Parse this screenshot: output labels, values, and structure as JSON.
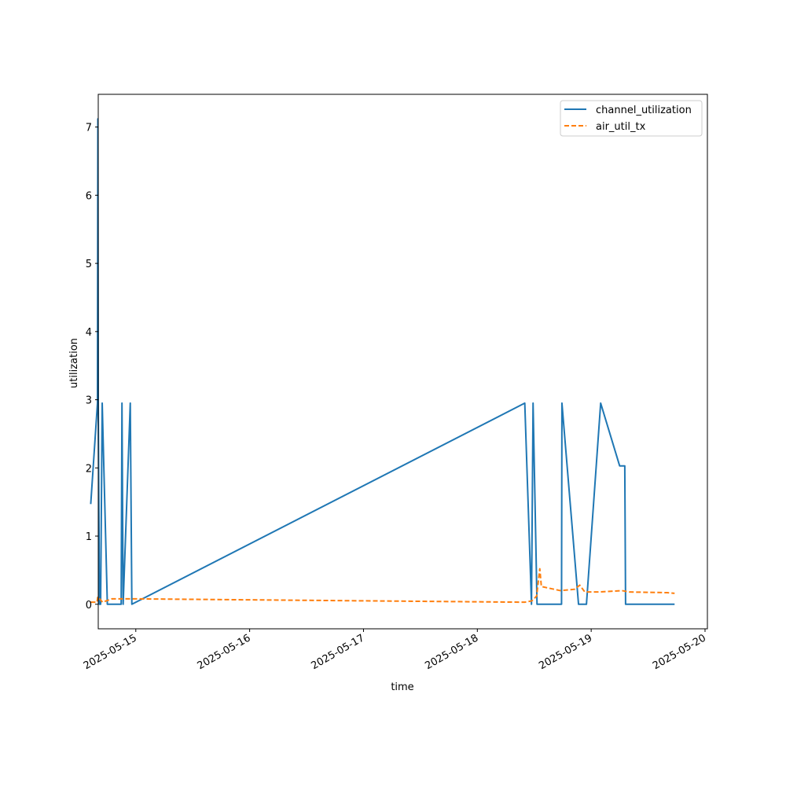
{
  "chart_data": {
    "type": "line",
    "title": "",
    "xlabel": "time",
    "ylabel": "utilization",
    "x_ticks": [
      "2025-05-15",
      "2025-05-16",
      "2025-05-17",
      "2025-05-18",
      "2025-05-19",
      "2025-05-20"
    ],
    "y_ticks": [
      "0",
      "1",
      "2",
      "3",
      "4",
      "5",
      "6",
      "7"
    ],
    "xlim": [
      "2025-05-14 16:05",
      "2025-05-20 00:30"
    ],
    "ylim": [
      -0.36,
      7.48
    ],
    "grid": false,
    "legend_position": "top-right",
    "series": [
      {
        "name": "channel_utilization",
        "color": "#1f77b4",
        "style": "solid",
        "points": [
          [
            "2025-05-14 14:30",
            1.47
          ],
          [
            "2025-05-14 15:55",
            2.95
          ],
          [
            "2025-05-14 16:00",
            7.12
          ],
          [
            "2025-05-14 16:05",
            2.95
          ],
          [
            "2025-05-14 16:20",
            0.0
          ],
          [
            "2025-05-14 16:35",
            0.0
          ],
          [
            "2025-05-14 16:55",
            2.95
          ],
          [
            "2025-05-14 18:00",
            0.0
          ],
          [
            "2025-05-14 20:55",
            0.0
          ],
          [
            "2025-05-14 21:05",
            2.95
          ],
          [
            "2025-05-14 21:20",
            0.0
          ],
          [
            "2025-05-14 22:50",
            2.95
          ],
          [
            "2025-05-14 23:10",
            0.0
          ],
          [
            "2025-05-18 10:00",
            2.95
          ],
          [
            "2025-05-18 11:25",
            0.0
          ],
          [
            "2025-05-18 11:45",
            2.95
          ],
          [
            "2025-05-18 12:35",
            0.0
          ],
          [
            "2025-05-18 17:45",
            0.0
          ],
          [
            "2025-05-18 17:50",
            2.95
          ],
          [
            "2025-05-18 21:20",
            0.0
          ],
          [
            "2025-05-18 23:00",
            0.0
          ],
          [
            "2025-05-19 02:00",
            2.95
          ],
          [
            "2025-05-19 06:00",
            2.03
          ],
          [
            "2025-05-19 07:05",
            2.03
          ],
          [
            "2025-05-19 07:15",
            0.0
          ],
          [
            "2025-05-19 17:35",
            0.0
          ]
        ]
      },
      {
        "name": "air_util_tx",
        "color": "#ff7f0e",
        "style": "dashed",
        "points": [
          [
            "2025-05-14 14:30",
            0.03
          ],
          [
            "2025-05-14 15:50",
            0.03
          ],
          [
            "2025-05-14 16:00",
            0.11
          ],
          [
            "2025-05-14 17:00",
            0.03
          ],
          [
            "2025-05-14 19:00",
            0.08
          ],
          [
            "2025-05-14 23:00",
            0.08
          ],
          [
            "2025-05-18 10:00",
            0.03
          ],
          [
            "2025-05-18 11:30",
            0.05
          ],
          [
            "2025-05-18 12:30",
            0.12
          ],
          [
            "2025-05-18 13:10",
            0.52
          ],
          [
            "2025-05-18 13:30",
            0.26
          ],
          [
            "2025-05-18 17:30",
            0.2
          ],
          [
            "2025-05-18 20:30",
            0.22
          ],
          [
            "2025-05-18 21:35",
            0.28
          ],
          [
            "2025-05-18 22:40",
            0.18
          ],
          [
            "2025-05-19 01:30",
            0.18
          ],
          [
            "2025-05-19 06:30",
            0.2
          ],
          [
            "2025-05-19 08:00",
            0.18
          ],
          [
            "2025-05-19 16:00",
            0.17
          ],
          [
            "2025-05-19 17:35",
            0.16
          ]
        ]
      }
    ]
  }
}
